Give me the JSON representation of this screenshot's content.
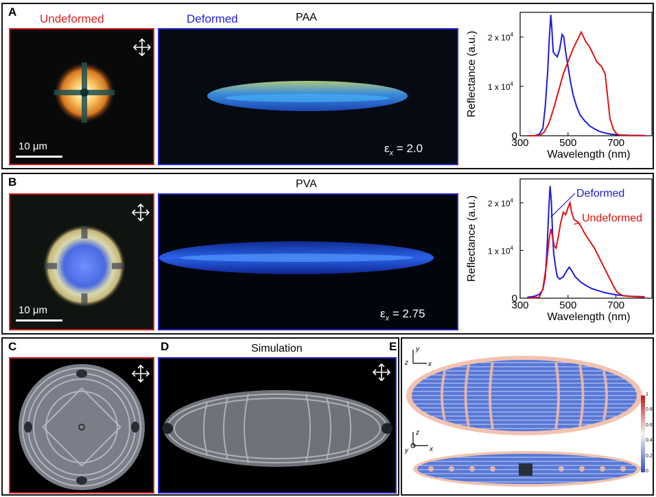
{
  "panels": {
    "A": {
      "label": "A",
      "undeformed": "Undeformed",
      "deformed": "Deformed",
      "material": "PAA",
      "scale": "10 μm",
      "strain_symbol": "ε",
      "strain_sub": "x",
      "strain_value": "= 2.0"
    },
    "B": {
      "label": "B",
      "material": "PVA",
      "scale": "10 μm",
      "strain_symbol": "ε",
      "strain_sub": "x",
      "strain_value": "= 2.75"
    },
    "C": {
      "label": "C"
    },
    "D": {
      "label": "D",
      "title": "Simulation"
    },
    "E": {
      "label": "E",
      "axis_top": {
        "y": "y",
        "z": "z",
        "x": "x"
      },
      "axis_bottom": {
        "z": "z",
        "y": "y",
        "x": "x"
      },
      "colorbar_ticks": [
        "1",
        "0.8",
        "0.6",
        "0.4",
        "0.2",
        "0"
      ]
    }
  },
  "chart_data": [
    {
      "type": "line",
      "panel": "A",
      "xlabel": "Wavelength (nm)",
      "ylabel": "Reflectance (a.u.)",
      "xlim": [
        300,
        850
      ],
      "ylim": [
        0,
        25000
      ],
      "xticks": [
        "300",
        "500",
        "700"
      ],
      "yticks": [
        "0",
        "1 x 10",
        "2 x 10"
      ],
      "ytick_exp": "4",
      "series": [
        {
          "color": "#1a1ae0",
          "x": [
            330,
            360,
            380,
            395,
            405,
            415,
            422,
            428,
            432,
            438,
            445,
            455,
            465,
            475,
            482,
            490,
            500,
            510,
            520,
            535,
            550,
            570,
            590,
            610,
            630,
            650,
            680,
            720,
            760,
            820
          ],
          "y": [
            0,
            0,
            300,
            1500,
            6000,
            13000,
            20000,
            24500,
            22000,
            17000,
            16500,
            16000,
            17500,
            20500,
            20000,
            17000,
            14000,
            11000,
            8500,
            6000,
            4200,
            3000,
            2000,
            1400,
            900,
            600,
            300,
            150,
            80,
            50
          ]
        },
        {
          "color": "#e01010",
          "x": [
            330,
            380,
            400,
            420,
            440,
            460,
            480,
            500,
            520,
            540,
            555,
            565,
            575,
            590,
            605,
            620,
            640,
            655,
            665,
            675,
            690,
            705,
            720,
            760,
            820
          ],
          "y": [
            0,
            0,
            700,
            2500,
            5500,
            9000,
            12500,
            15000,
            17500,
            19500,
            21000,
            20000,
            19000,
            18000,
            16500,
            15000,
            14000,
            12500,
            8000,
            3500,
            1200,
            300,
            100,
            30,
            20
          ]
        }
      ]
    },
    {
      "type": "line",
      "panel": "B",
      "xlabel": "Wavelength (nm)",
      "ylabel": "Reflectance (a.u.)",
      "xlim": [
        300,
        850
      ],
      "ylim": [
        0,
        25000
      ],
      "xticks": [
        "300",
        "500",
        "700"
      ],
      "yticks": [
        "0",
        "1 x 10",
        "2 x 10"
      ],
      "ytick_exp": "4",
      "series": [
        {
          "name": "Deformed",
          "color": "#1a1ae0",
          "x": [
            330,
            360,
            380,
            395,
            405,
            412,
            420,
            425,
            430,
            435,
            440,
            448,
            455,
            465,
            480,
            495,
            505,
            515,
            530,
            550,
            570,
            600,
            650,
            700,
            760,
            820
          ],
          "y": [
            200,
            400,
            800,
            1800,
            4500,
            10000,
            19000,
            23500,
            20500,
            14000,
            9500,
            6500,
            4500,
            4000,
            4500,
            5800,
            6500,
            5800,
            4500,
            3500,
            2800,
            2000,
            1200,
            700,
            400,
            300
          ]
        },
        {
          "name": "Undeformed",
          "color": "#e01010",
          "x": [
            330,
            380,
            395,
            410,
            420,
            428,
            435,
            442,
            450,
            458,
            468,
            480,
            490,
            500,
            508,
            515,
            525,
            540,
            555,
            570,
            590,
            610,
            630,
            650,
            670,
            690,
            705,
            730,
            780,
            820
          ],
          "y": [
            0,
            200,
            2000,
            7000,
            12000,
            14500,
            13000,
            11000,
            10500,
            12500,
            15500,
            18000,
            17500,
            19000,
            20000,
            18000,
            16500,
            16000,
            15000,
            13500,
            12000,
            10500,
            8500,
            6500,
            4500,
            2500,
            1200,
            500,
            300,
            200
          ]
        }
      ]
    }
  ]
}
